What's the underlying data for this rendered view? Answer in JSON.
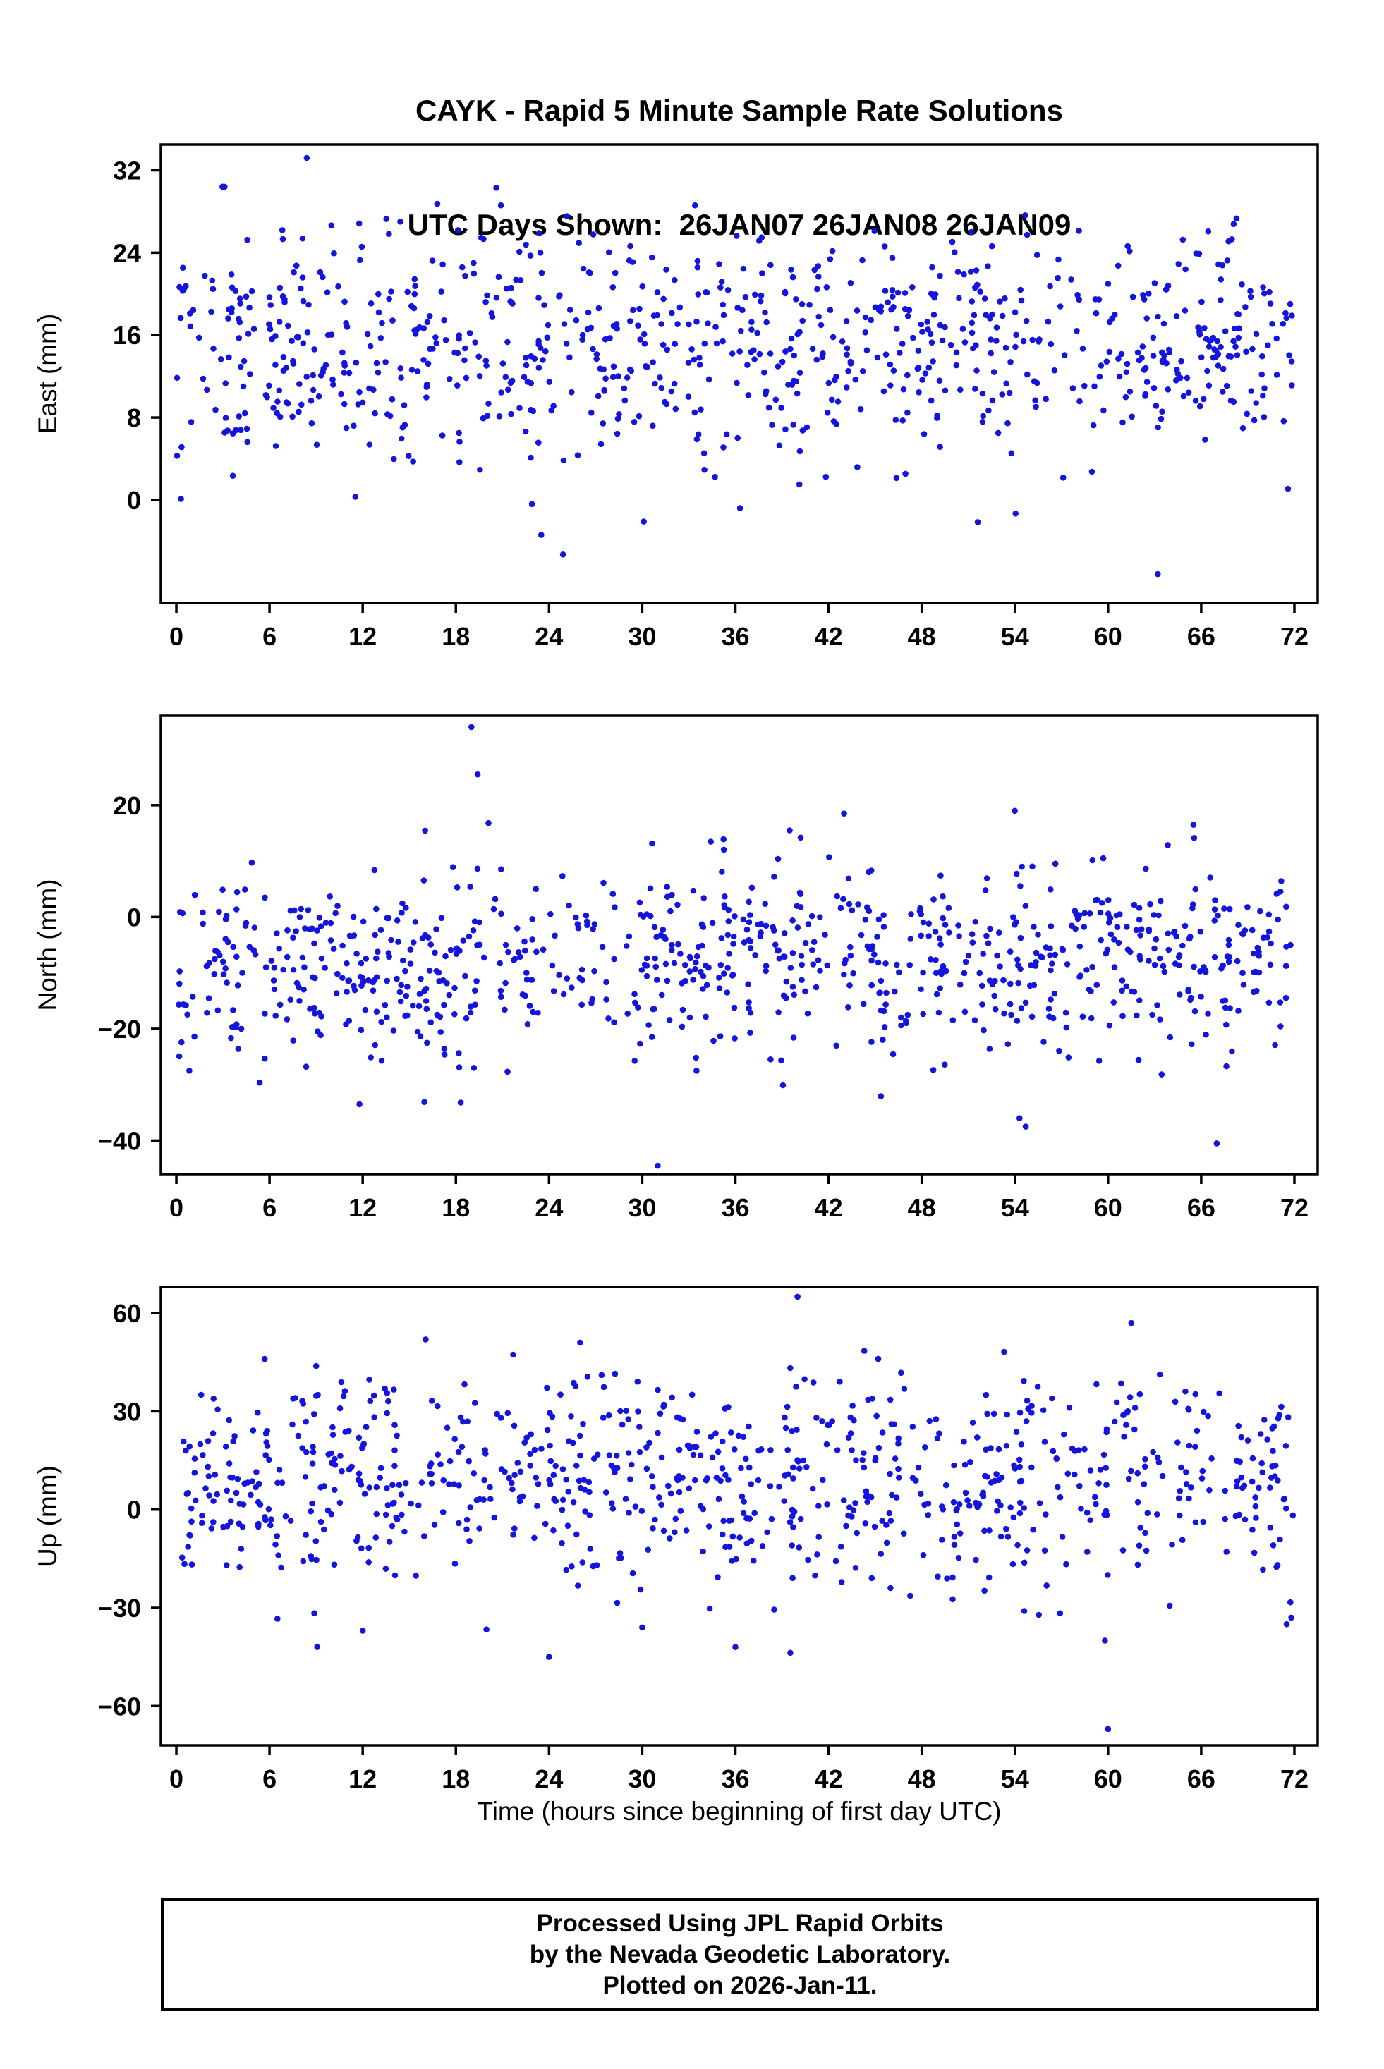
{
  "title": {
    "line1": "CAYK - Rapid 5 Minute Sample Rate Solutions",
    "line2": "UTC Days Shown:  26JAN07 26JAN08 26JAN09"
  },
  "xlabel": "Time (hours since beginning of first day UTC)",
  "footer": {
    "line1": "Processed Using JPL Rapid Orbits",
    "line2": "by the Nevada Geodetic Laboratory.",
    "line3": "Plotted on 2026-Jan-11."
  },
  "style": {
    "marker_color": "#1414DC",
    "marker_radius": 4.3,
    "axis_color": "#000000",
    "background": "#ffffff"
  },
  "chart_data": [
    {
      "type": "scatter",
      "name": "east",
      "ylabel": "East (mm)",
      "y_unit": "mm",
      "x_unit": "hours",
      "xlim": [
        -1,
        73.5
      ],
      "ylim": [
        -10,
        34.5
      ],
      "xticks": [
        0,
        6,
        12,
        18,
        24,
        30,
        36,
        42,
        48,
        54,
        60,
        66,
        72
      ],
      "yticks": [
        0,
        8,
        16,
        24,
        32
      ],
      "grid": false,
      "legend": false,
      "points": {
        "seed": 11,
        "n": 850,
        "x_min": 0,
        "x_max": 72,
        "mean": 15,
        "sd": 5.5,
        "clip_min": -2.5,
        "clip_max": 30.5,
        "outliers": [
          [
            8.4,
            33.2
          ],
          [
            3.1,
            30.4
          ],
          [
            20.6,
            30.3
          ],
          [
            20.9,
            28.6
          ],
          [
            33.4,
            28.6
          ],
          [
            23.5,
            -3.4
          ],
          [
            24.9,
            -5.3
          ],
          [
            63.2,
            -7.2
          ],
          [
            30.1,
            -2.1
          ],
          [
            36.3,
            -0.8
          ],
          [
            22.9,
            -0.4
          ],
          [
            0.3,
            0.1
          ]
        ]
      }
    },
    {
      "type": "scatter",
      "name": "north",
      "ylabel": "North (mm)",
      "y_unit": "mm",
      "x_unit": "hours",
      "xlim": [
        -1,
        73.5
      ],
      "ylim": [
        -46,
        36
      ],
      "xticks": [
        0,
        6,
        12,
        18,
        24,
        30,
        36,
        42,
        48,
        54,
        60,
        66,
        72
      ],
      "yticks": [
        -40,
        -20,
        0,
        20
      ],
      "grid": false,
      "legend": false,
      "points": {
        "seed": 22,
        "n": 850,
        "x_min": 0,
        "x_max": 72,
        "mean": -8,
        "sd": 8.5,
        "clip_min": -33.5,
        "clip_max": 16,
        "outliers": [
          [
            19.0,
            34
          ],
          [
            19.4,
            25.5
          ],
          [
            20.1,
            16.8
          ],
          [
            31.0,
            -44.5
          ],
          [
            54.3,
            -36
          ],
          [
            54.7,
            -37.5
          ],
          [
            67.0,
            -40.5
          ],
          [
            54.0,
            19
          ],
          [
            43.0,
            18.5
          ],
          [
            65.5,
            16.5
          ],
          [
            39.5,
            15.5
          ],
          [
            40.2,
            14.2
          ]
        ]
      }
    },
    {
      "type": "scatter",
      "name": "up",
      "ylabel": "Up (mm)",
      "y_unit": "mm",
      "x_unit": "hours",
      "xlim": [
        -1,
        73.5
      ],
      "ylim": [
        -72,
        68
      ],
      "xticks": [
        0,
        6,
        12,
        18,
        24,
        30,
        36,
        42,
        48,
        54,
        60,
        66,
        72
      ],
      "yticks": [
        -60,
        -30,
        0,
        30,
        60
      ],
      "grid": false,
      "legend": false,
      "points": {
        "seed": 33,
        "n": 830,
        "x_min": 0,
        "x_max": 72,
        "mean": 7,
        "sd": 16,
        "clip_min": -45,
        "clip_max": 52,
        "outliers": [
          [
            40.0,
            65
          ],
          [
            26.0,
            51
          ],
          [
            44.3,
            48.5
          ],
          [
            45.2,
            46
          ],
          [
            61.5,
            57
          ],
          [
            60.0,
            -67
          ],
          [
            36.0,
            -42
          ],
          [
            12.0,
            -37
          ],
          [
            59.8,
            -40
          ],
          [
            24.0,
            -45
          ],
          [
            71.5,
            -35
          ],
          [
            71.8,
            -33
          ],
          [
            30.0,
            -36
          ]
        ]
      }
    }
  ]
}
